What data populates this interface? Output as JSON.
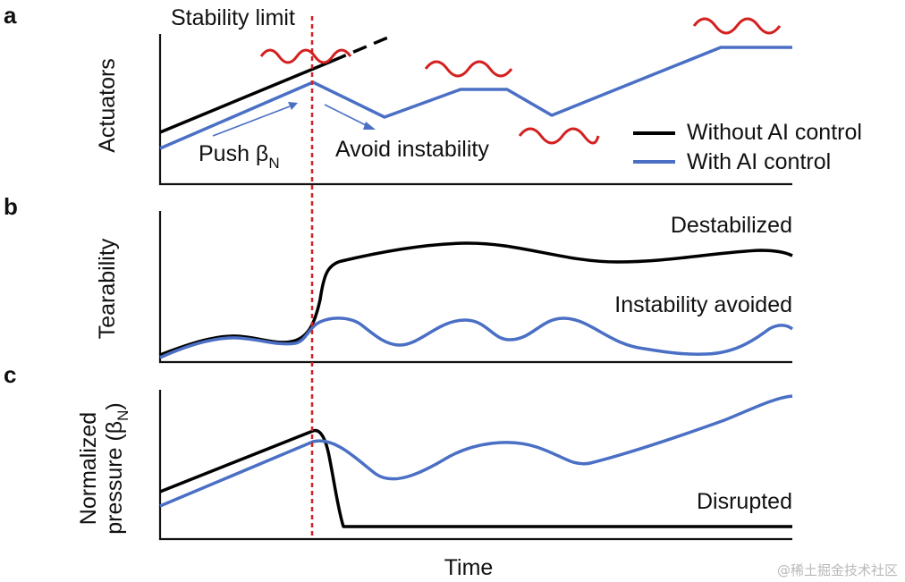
{
  "colors": {
    "without_ai": "#000000",
    "with_ai": "#4a6fc4",
    "instability_wave": "#d42020",
    "stability_limit": "#d42020",
    "axis": "#111111"
  },
  "panels": {
    "a": {
      "letter": "a",
      "ylabel": "Actuators",
      "stability_limit_label": "Stability limit",
      "push_label": "Push β",
      "push_subscript": "N",
      "avoid_label": "Avoid instability",
      "legend": {
        "without_ai": "Without AI control",
        "with_ai": "With AI control"
      }
    },
    "b": {
      "letter": "b",
      "ylabel": "Tearability",
      "destabilized_label": "Destabilized",
      "avoided_label": "Instability avoided"
    },
    "c": {
      "letter": "c",
      "ylabel_line1": "Normalized",
      "ylabel_line2": "pressure (β",
      "ylabel_sub": "N",
      "ylabel_close": ")",
      "disrupted_label": "Disrupted"
    }
  },
  "xlabel": "Time",
  "watermark": "@稀土掘金技术社区"
}
